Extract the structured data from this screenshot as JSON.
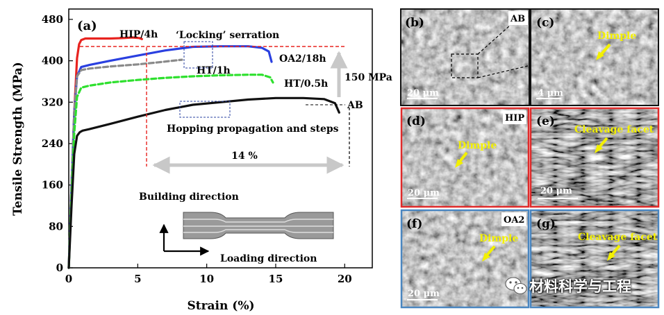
{
  "chart_data": {
    "type": "line",
    "panel_label": "(a)",
    "xlabel": "Strain (%)",
    "ylabel": "Tensile Strength (MPa)",
    "xlim": [
      0,
      22
    ],
    "ylim": [
      0,
      500
    ],
    "xticks": [
      0,
      5,
      10,
      15,
      20
    ],
    "yticks": [
      0,
      80,
      160,
      240,
      320,
      400,
      480
    ],
    "grid": false,
    "series": [
      {
        "name": "HIP/4h",
        "color": "#e8231f",
        "dash": "solid",
        "x": [
          0,
          0.2,
          0.4,
          0.6,
          0.75,
          0.9,
          1.2,
          2.0,
          3.0,
          4.0,
          4.6,
          5.1,
          5.3
        ],
        "y": [
          0,
          160,
          300,
          405,
          432,
          440,
          443,
          443,
          443,
          444,
          445,
          444,
          442
        ]
      },
      {
        "name": "OA2/18h",
        "color": "#2a40e0",
        "dash": "solid",
        "x": [
          0,
          0.2,
          0.4,
          0.6,
          0.9,
          1.5,
          3.0,
          5.0,
          7.0,
          9.0,
          11.0,
          13.0,
          14.0,
          14.5,
          14.7
        ],
        "y": [
          0,
          160,
          300,
          370,
          388,
          392,
          400,
          410,
          420,
          427,
          428,
          428,
          425,
          418,
          398
        ]
      },
      {
        "name": "HT/1h",
        "color": "#8a8a8a",
        "dash": "dashed",
        "x": [
          0,
          0.2,
          0.4,
          0.6,
          0.9,
          1.5,
          3.0,
          5.0,
          6.5,
          7.5,
          8.2
        ],
        "y": [
          0,
          160,
          300,
          370,
          382,
          385,
          389,
          393,
          397,
          400,
          402
        ]
      },
      {
        "name": "HT/0.5h",
        "color": "#2ee02e",
        "dash": "dashed",
        "x": [
          0,
          0.2,
          0.4,
          0.6,
          0.9,
          1.5,
          3.0,
          5.0,
          7.0,
          9.0,
          11.0,
          13.0,
          14.0,
          14.6,
          14.8
        ],
        "y": [
          0,
          140,
          260,
          330,
          348,
          352,
          358,
          363,
          367,
          370,
          372,
          373,
          373,
          368,
          358
        ]
      },
      {
        "name": "AB",
        "color": "#111111",
        "dash": "solid",
        "x": [
          0,
          0.2,
          0.4,
          0.6,
          0.8,
          1.0,
          1.5,
          3.0,
          5.0,
          7.0,
          9.0,
          11.0,
          13.0,
          15.0,
          17.0,
          18.5,
          19.3,
          19.6
        ],
        "y": [
          0,
          120,
          220,
          255,
          262,
          265,
          268,
          278,
          292,
          305,
          315,
          320,
          325,
          328,
          328,
          326,
          318,
          300
        ]
      }
    ],
    "annotations": {
      "locking": "‘Locking’ serration",
      "hopping": "Hopping propagation and steps",
      "mpa": "150 MPa",
      "pct": "14 %",
      "building": "Building direction",
      "loading": "Loading direction"
    }
  },
  "sem_panels": [
    {
      "label": "(b)",
      "tag": "AB",
      "scale": "20 μm",
      "border": "#111111"
    },
    {
      "label": "(c)",
      "arrow_text": "Dimple",
      "scale": "4 μm",
      "border": "#111111"
    },
    {
      "label": "(d)",
      "tag": "HIP",
      "arrow_text": "Dimple",
      "scale": "20 μm",
      "border": "#e02a2a"
    },
    {
      "label": "(e)",
      "arrow_text": "Cleavage facet",
      "scale": "20 μm",
      "border": "#e02a2a"
    },
    {
      "label": "(f)",
      "tag": "OA2",
      "arrow_text": "Dimple",
      "scale": "20 μm",
      "border": "#4a86c0"
    },
    {
      "label": "(g)",
      "arrow_text": "Cleavage facet",
      "scale": "",
      "border": "#4a86c0"
    }
  ],
  "watermark": "材料科学与工程",
  "icon": "wechat-icon"
}
